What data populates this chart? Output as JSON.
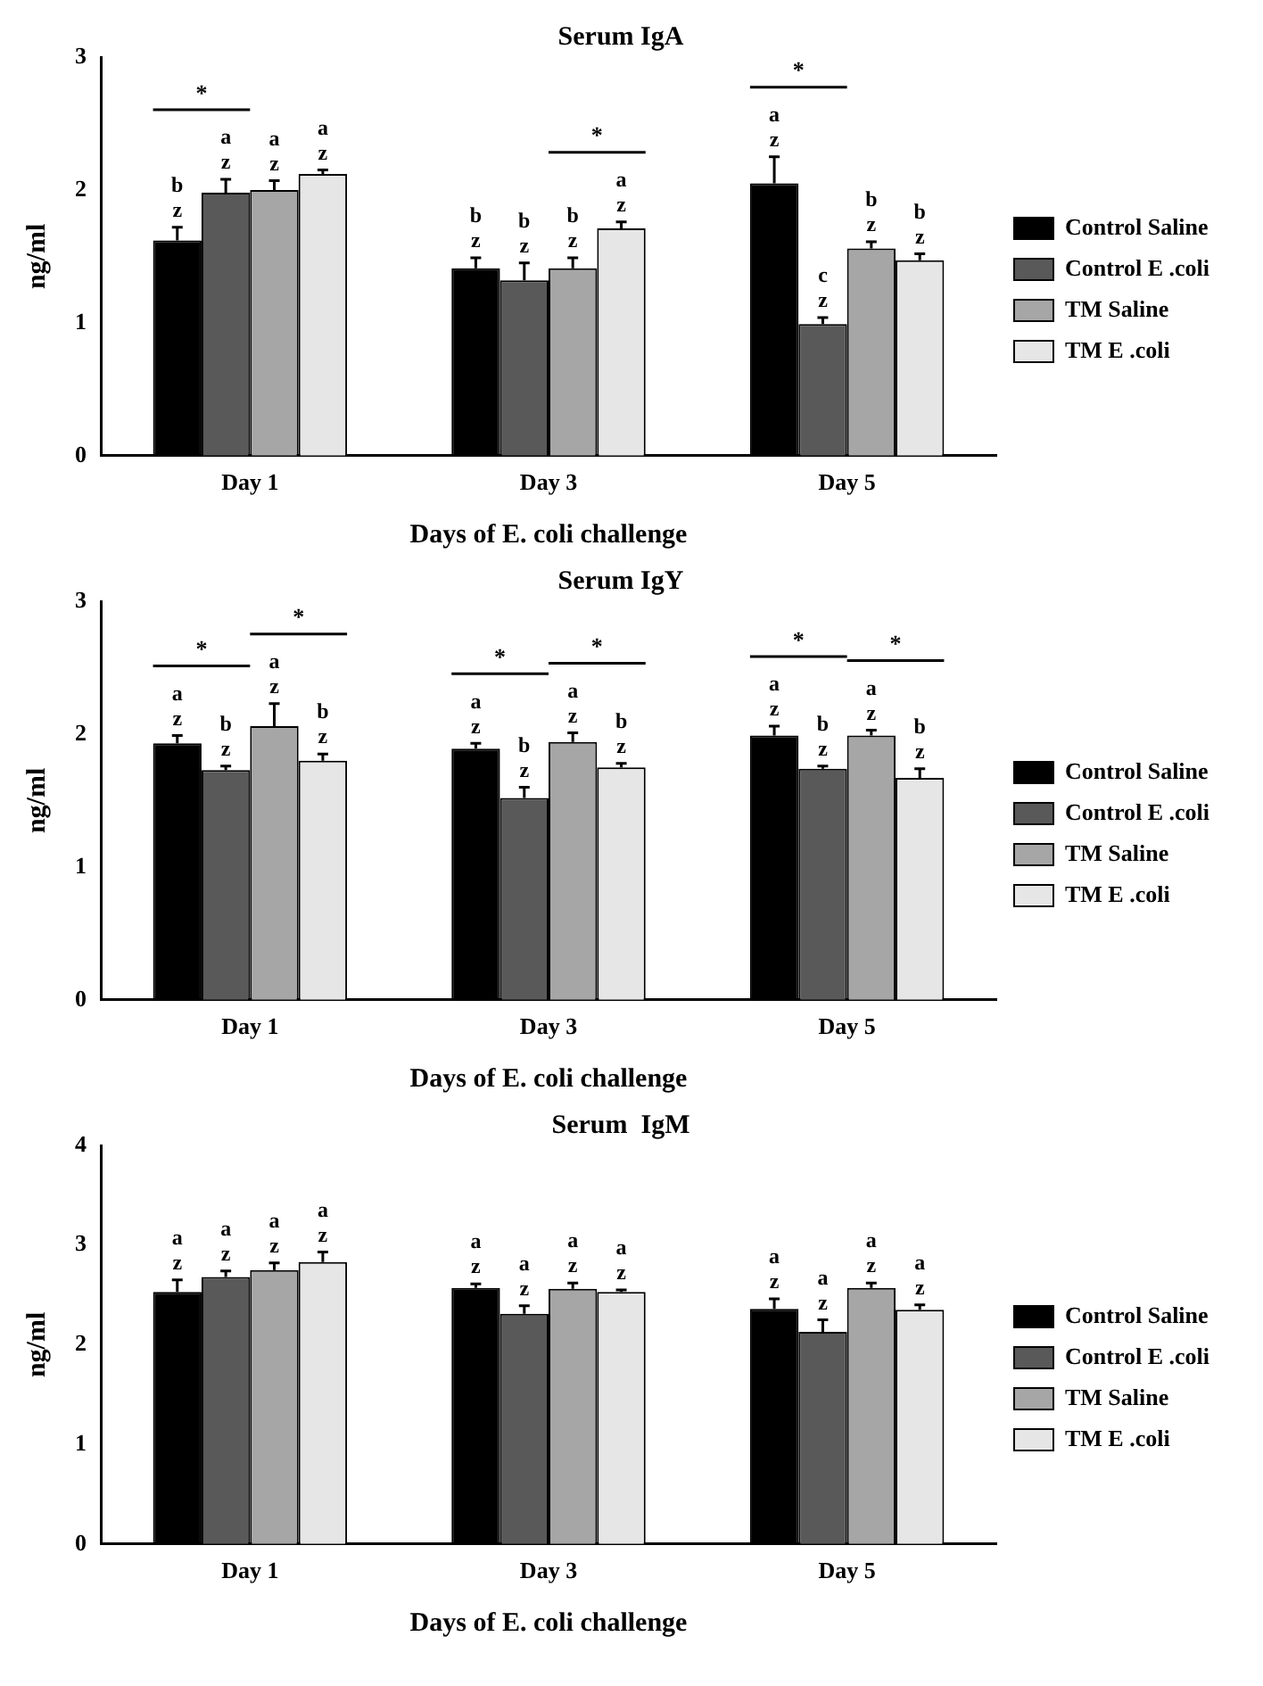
{
  "chart_data": [
    {
      "type": "bar",
      "title": "Serum IgA",
      "xlabel": "Days of E. coli challenge",
      "ylabel": "ng/ml",
      "categories": [
        "Day 1",
        "Day 3",
        "Day 5"
      ],
      "ylim": [
        0,
        3
      ],
      "yticks": [
        0,
        1,
        2,
        3
      ],
      "grid": false,
      "legend": "right",
      "series": [
        {
          "name": "Control Saline",
          "color": "#000000",
          "values": [
            1.62,
            1.41,
            2.05
          ],
          "errors": [
            [
              1.62,
              1.72
            ],
            [
              1.41,
              1.49
            ],
            [
              2.05,
              2.25
            ]
          ],
          "value_labels": [
            "b\nz",
            "b\nz",
            "a\nz"
          ]
        },
        {
          "name": "Control E .coli",
          "color": "#595959",
          "values": [
            1.98,
            1.32,
            0.99
          ],
          "errors": [
            [
              1.98,
              2.08
            ],
            [
              1.32,
              1.45
            ],
            [
              0.99,
              1.04
            ]
          ],
          "value_labels": [
            "a\nz",
            "b\nz",
            "c\nz"
          ]
        },
        {
          "name": "TM Saline",
          "color": "#a6a6a6",
          "values": [
            2.0,
            1.41,
            1.56
          ],
          "errors": [
            [
              2.0,
              2.07
            ],
            [
              1.41,
              1.49
            ],
            [
              1.56,
              1.61
            ]
          ],
          "value_labels": [
            "a\nz",
            "b\nz",
            "b\nz"
          ]
        },
        {
          "name": "TM E .coli",
          "color": "#e6e6e6",
          "values": [
            2.12,
            1.71,
            1.47
          ],
          "errors": [
            [
              2.12,
              2.15
            ],
            [
              1.71,
              1.76
            ],
            [
              1.47,
              1.52
            ]
          ],
          "value_labels": [
            "a\nz",
            "a\nz",
            "b\nz"
          ]
        }
      ],
      "annotations": [
        "*",
        "*",
        "*"
      ]
    },
    {
      "type": "bar",
      "title": "Serum IgY",
      "xlabel": "Days of E. coli challenge",
      "ylabel": "ng/ml",
      "categories": [
        "Day 1",
        "Day 3",
        "Day 5"
      ],
      "ylim": [
        0,
        3
      ],
      "yticks": [
        0,
        1,
        2,
        3
      ],
      "grid": false,
      "legend": "right",
      "series": [
        {
          "name": "Control Saline",
          "color": "#000000",
          "values": [
            1.93,
            1.89,
            1.99
          ],
          "errors": [
            [
              1.93,
              1.99
            ],
            [
              1.89,
              1.93
            ],
            [
              1.99,
              2.06
            ]
          ],
          "value_labels": [
            "a\nz",
            "a\nz",
            "a\nz"
          ]
        },
        {
          "name": "Control E .coli",
          "color": "#595959",
          "values": [
            1.73,
            1.52,
            1.74
          ],
          "errors": [
            [
              1.73,
              1.76
            ],
            [
              1.52,
              1.6
            ],
            [
              1.74,
              1.76
            ]
          ],
          "value_labels": [
            "b\nz",
            "b\nz",
            "b\nz"
          ]
        },
        {
          "name": "TM Saline",
          "color": "#a6a6a6",
          "values": [
            2.06,
            1.94,
            1.99
          ],
          "errors": [
            [
              2.06,
              2.23
            ],
            [
              1.94,
              2.01
            ],
            [
              1.99,
              2.03
            ]
          ],
          "value_labels": [
            "a\nz",
            "a\nz",
            "a\nz"
          ]
        },
        {
          "name": "TM E .coli",
          "color": "#e6e6e6",
          "values": [
            1.8,
            1.75,
            1.67
          ],
          "errors": [
            [
              1.8,
              1.85
            ],
            [
              1.75,
              1.78
            ],
            [
              1.67,
              1.74
            ]
          ],
          "value_labels": [
            "b\nz",
            "b\nz",
            "b\nz"
          ]
        }
      ],
      "annotations": [
        "*",
        "*",
        "*",
        "*",
        "*",
        "*"
      ]
    },
    {
      "type": "bar",
      "title": "Serum  IgM",
      "xlabel": "Days of E. coli challenge",
      "ylabel": "ng/ml",
      "categories": [
        "Day 1",
        "Day 3",
        "Day 5"
      ],
      "ylim": [
        0,
        4
      ],
      "yticks": [
        0,
        1,
        2,
        3,
        4
      ],
      "grid": false,
      "legend": "right",
      "series": [
        {
          "name": "Control Saline",
          "color": "#000000",
          "values": [
            2.53,
            2.57,
            2.36
          ],
          "errors": [
            [
              2.53,
              2.65
            ],
            [
              2.57,
              2.61
            ],
            [
              2.36,
              2.46
            ]
          ],
          "value_labels": [
            "a\nz",
            "a\nz",
            "a\nz"
          ]
        },
        {
          "name": "Control E .coli",
          "color": "#595959",
          "values": [
            2.68,
            2.31,
            2.13
          ],
          "errors": [
            [
              2.68,
              2.74
            ],
            [
              2.31,
              2.39
            ],
            [
              2.13,
              2.25
            ]
          ],
          "value_labels": [
            "a\nz",
            "a\nz",
            "a\nz"
          ]
        },
        {
          "name": "TM Saline",
          "color": "#a6a6a6",
          "values": [
            2.75,
            2.56,
            2.57
          ],
          "errors": [
            [
              2.75,
              2.82
            ],
            [
              2.56,
              2.62
            ],
            [
              2.57,
              2.62
            ]
          ],
          "value_labels": [
            "a\nz",
            "a\nz",
            "a\nz"
          ]
        },
        {
          "name": "TM E .coli",
          "color": "#e6e6e6",
          "values": [
            2.83,
            2.53,
            2.35
          ],
          "errors": [
            [
              2.83,
              2.93
            ],
            [
              2.53,
              2.55
            ],
            [
              2.35,
              2.4
            ]
          ],
          "value_labels": [
            "a\nz",
            "a\nz",
            "a\nz"
          ]
        }
      ]
    }
  ]
}
